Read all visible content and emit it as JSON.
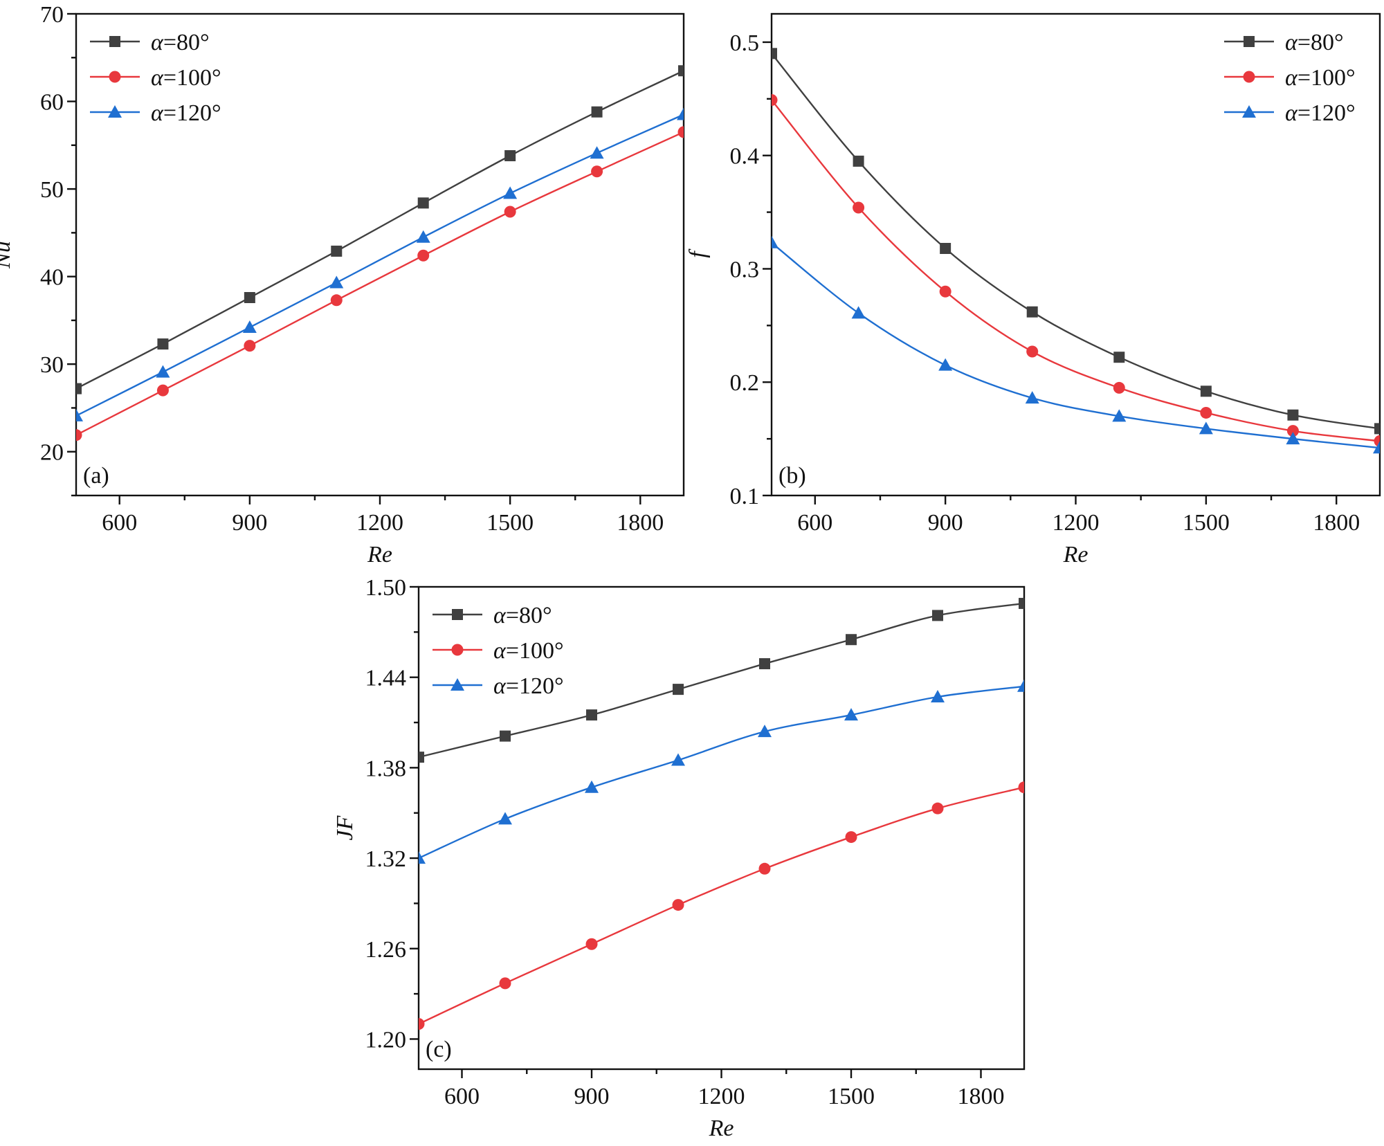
{
  "chart_data": [
    {
      "id": "a",
      "type": "line",
      "panel_label": "(a)",
      "xlabel": "Re",
      "ylabel": "Nu",
      "xlim": [
        500,
        1900
      ],
      "ylim": [
        15,
        70
      ],
      "xticks": [
        600,
        900,
        1200,
        1500,
        1800
      ],
      "xtick_labels": [
        "600",
        "900",
        "1200",
        "1500",
        "1800"
      ],
      "yticks": [
        20,
        30,
        40,
        50,
        60,
        70
      ],
      "ytick_labels": [
        "20",
        "30",
        "40",
        "50",
        "60",
        "70"
      ],
      "legend_position": "top-left",
      "x": [
        500,
        700,
        900,
        1100,
        1300,
        1500,
        1700,
        1900
      ],
      "series": [
        {
          "name": "α=80°",
          "greek": "α",
          "label": "=80°",
          "color": "#404040",
          "marker": "square",
          "values": [
            27.2,
            32.3,
            37.6,
            42.9,
            48.4,
            53.8,
            58.8,
            63.5
          ]
        },
        {
          "name": "α=100°",
          "greek": "α",
          "label": "=100°",
          "color": "#e8383d",
          "marker": "circle",
          "values": [
            21.9,
            27.0,
            32.1,
            37.3,
            42.4,
            47.4,
            52.0,
            56.5
          ]
        },
        {
          "name": "α=120°",
          "greek": "α",
          "label": "=120°",
          "color": "#1f6fd1",
          "marker": "triangle",
          "values": [
            24.1,
            29.1,
            34.2,
            39.3,
            44.5,
            49.5,
            54.1,
            58.5
          ]
        }
      ]
    },
    {
      "id": "b",
      "type": "line",
      "panel_label": "(b)",
      "xlabel": "Re",
      "ylabel": "f",
      "xlim": [
        500,
        1900
      ],
      "ylim": [
        0.1,
        0.525
      ],
      "xticks": [
        600,
        900,
        1200,
        1500,
        1800
      ],
      "xtick_labels": [
        "600",
        "900",
        "1200",
        "1500",
        "1800"
      ],
      "yticks": [
        0.1,
        0.2,
        0.3,
        0.4,
        0.5
      ],
      "ytick_labels": [
        "0.1",
        "0.2",
        "0.3",
        "0.4",
        "0.5"
      ],
      "legend_position": "top-right",
      "x": [
        500,
        700,
        900,
        1100,
        1300,
        1500,
        1700,
        1900
      ],
      "series": [
        {
          "name": "α=80°",
          "greek": "α",
          "label": "=80°",
          "color": "#404040",
          "marker": "square",
          "values": [
            0.49,
            0.395,
            0.318,
            0.262,
            0.222,
            0.192,
            0.171,
            0.159
          ]
        },
        {
          "name": "α=100°",
          "greek": "α",
          "label": "=100°",
          "color": "#e8383d",
          "marker": "circle",
          "values": [
            0.449,
            0.354,
            0.28,
            0.227,
            0.195,
            0.173,
            0.157,
            0.148
          ]
        },
        {
          "name": "α=120°",
          "greek": "α",
          "label": "=120°",
          "color": "#1f6fd1",
          "marker": "triangle",
          "values": [
            0.323,
            0.261,
            0.215,
            0.186,
            0.17,
            0.159,
            0.15,
            0.142
          ]
        }
      ]
    },
    {
      "id": "c",
      "type": "line",
      "panel_label": "(c)",
      "xlabel": "Re",
      "ylabel": "JF",
      "xlim": [
        500,
        1900
      ],
      "ylim": [
        1.18,
        1.5
      ],
      "xticks": [
        600,
        900,
        1200,
        1500,
        1800
      ],
      "xtick_labels": [
        "600",
        "900",
        "1200",
        "1500",
        "1800"
      ],
      "yticks": [
        1.2,
        1.26,
        1.32,
        1.38,
        1.44,
        1.5
      ],
      "ytick_labels": [
        "1.20",
        "1.26",
        "1.32",
        "1.38",
        "1.44",
        "1.50"
      ],
      "legend_position": "top-left",
      "x": [
        500,
        700,
        900,
        1100,
        1300,
        1500,
        1700,
        1900
      ],
      "series": [
        {
          "name": "α=80°",
          "greek": "α",
          "label": "=80°",
          "color": "#404040",
          "marker": "square",
          "values": [
            1.387,
            1.401,
            1.415,
            1.432,
            1.449,
            1.465,
            1.481,
            1.489
          ]
        },
        {
          "name": "α=100°",
          "greek": "α",
          "label": "=100°",
          "color": "#e8383d",
          "marker": "circle",
          "values": [
            1.21,
            1.237,
            1.263,
            1.289,
            1.313,
            1.334,
            1.353,
            1.367
          ]
        },
        {
          "name": "α=120°",
          "greek": "α",
          "label": "=120°",
          "color": "#1f6fd1",
          "marker": "triangle",
          "values": [
            1.32,
            1.346,
            1.367,
            1.385,
            1.404,
            1.415,
            1.427,
            1.434
          ]
        }
      ]
    }
  ]
}
